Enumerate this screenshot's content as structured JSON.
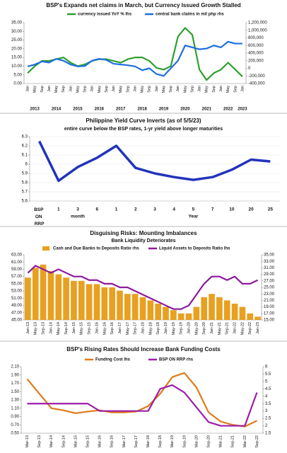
{
  "chart_data": [
    {
      "type": "line",
      "title": "BSP's Expands net claims in March, but Currency Issued Growth Stalled",
      "categories": [
        "Jan",
        "May",
        "Sep",
        "Jan",
        "May",
        "Sep",
        "Jan",
        "May",
        "Sep",
        "Jan",
        "May",
        "Sep",
        "Jan",
        "May",
        "Sep",
        "Jan",
        "May",
        "Sep",
        "Jan",
        "May",
        "Sep",
        "Jan",
        "May",
        "Sep",
        "Jan",
        "May",
        "Sep",
        "Jan",
        "May",
        "Sep",
        "Jan"
      ],
      "year_labels": [
        "2013",
        "2014",
        "2015",
        "2016",
        "2017",
        "2018",
        "2019",
        "2020",
        "2021",
        "2022",
        "2023"
      ],
      "series": [
        {
          "name": "currency issued YoY % lhs",
          "color": "#2e9e2e",
          "values": [
            6,
            10,
            13,
            13,
            14,
            15,
            12,
            10,
            11,
            13,
            14,
            14,
            13,
            12,
            14,
            15,
            15,
            13,
            9,
            8,
            10,
            27,
            32,
            28,
            8,
            2,
            6,
            8,
            12,
            8,
            4
          ]
        },
        {
          "name": "central bank claims in mil php rhs",
          "color": "#1f6fe0",
          "axis": "y2",
          "values": [
            50000,
            100000,
            180000,
            150000,
            250000,
            200000,
            100000,
            50000,
            60000,
            200000,
            250000,
            220000,
            120000,
            100000,
            80000,
            50000,
            -50000,
            0,
            -150000,
            -200000,
            0,
            200000,
            600000,
            550000,
            500000,
            520000,
            600000,
            550000,
            700000,
            650000,
            650000
          ]
        }
      ],
      "ylim": [
        0,
        35
      ],
      "yticks": [
        {
          "value": 0,
          "label": "0.00"
        },
        {
          "value": 5,
          "label": "5.00"
        },
        {
          "value": 10,
          "label": "10.00"
        },
        {
          "value": 15,
          "label": "15.00"
        },
        {
          "value": 20,
          "label": "20.00"
        },
        {
          "value": 25,
          "label": "25.00"
        },
        {
          "value": 30,
          "label": "30.00"
        },
        {
          "value": 35,
          "label": "35.00"
        }
      ],
      "y2lim": [
        -400000,
        1200000
      ],
      "y2ticks": [
        {
          "value": -400000,
          "label": "-400,000"
        },
        {
          "value": -200000,
          "label": "-200,000"
        },
        0,
        {
          "value": 200000,
          "label": "200,000"
        },
        {
          "value": 400000,
          "label": "400,000"
        },
        {
          "value": 600000,
          "label": "600,000"
        },
        {
          "value": 800000,
          "label": "800,000"
        },
        {
          "value": 1000000,
          "label": "1,000,000"
        },
        {
          "value": 1200000,
          "label": "1,200,000"
        }
      ],
      "legend": "top"
    },
    {
      "type": "line",
      "title": "Philippine Yield Curve Inverts (as of 5/5/23)",
      "subtitle": "entire curve below the BSP rates, 1-yr yield above longer maturities",
      "categories": [
        "BSP ON RRP",
        "1",
        "3",
        "6",
        "1",
        "2",
        "3",
        "4",
        "5",
        "7",
        "10",
        "20",
        "25"
      ],
      "group_labels": [
        "month",
        "Year"
      ],
      "series": [
        {
          "color": "#2233bb",
          "values": [
            6.25,
            5.82,
            5.97,
            6.07,
            6.2,
            5.96,
            5.9,
            5.86,
            5.83,
            5.86,
            5.94,
            6.05,
            6.03
          ]
        }
      ],
      "ylim": [
        5.6,
        6.3
      ],
      "yticks": [
        5.6,
        5.7,
        5.8,
        5.9,
        6,
        6.1,
        6.2,
        6.3
      ]
    },
    {
      "type": "bar",
      "title": "Disguising Risks: Mounting Imbalances",
      "subtitle": "Bank Liquidity Deteriorates",
      "categories": [
        "Jan-13",
        "May-13",
        "Sep-13",
        "Jan-14",
        "May-14",
        "Sep-14",
        "Jan-15",
        "May-15",
        "Sep-15",
        "Jan-16",
        "May-16",
        "Sep-16",
        "Jan-17",
        "May-17",
        "Sep-17",
        "Jan-18",
        "May-18",
        "Sep-18",
        "Jan-19",
        "May-19",
        "Sep-19",
        "Jan-20",
        "May-20",
        "Sep-20",
        "Jan-21",
        "May-21",
        "Sep-21",
        "Jan-22",
        "May-22",
        "Sep-22",
        "Jan-23"
      ],
      "series": [
        {
          "name": "Cash and Due Banks to Deposits Ratio rhs",
          "color": "#e8a020",
          "axis": "y2",
          "values": [
            28,
            31,
            32,
            30,
            29,
            28,
            27,
            27,
            26,
            26,
            25,
            25,
            24,
            23,
            23,
            22,
            21,
            20,
            19,
            18,
            17,
            17,
            19,
            22,
            23,
            22,
            21,
            20,
            19,
            17,
            16
          ]
        },
        {
          "name": "Liquid Assets to Deposits Ratio lhs",
          "color": "#8b1a9b",
          "type": "line",
          "values": [
            58,
            60,
            59,
            58,
            59,
            58,
            57,
            57,
            56,
            56,
            55,
            55,
            54,
            54,
            53,
            52,
            51,
            50,
            49,
            48,
            48,
            49,
            52,
            55,
            57,
            57,
            56,
            57,
            55,
            55,
            56
          ]
        }
      ],
      "ylim": [
        45,
        63
      ],
      "yticks": [
        {
          "value": 45,
          "label": "45.00"
        },
        {
          "value": 47,
          "label": "47.00"
        },
        {
          "value": 49,
          "label": "49.00"
        },
        {
          "value": 51,
          "label": "51.00"
        },
        {
          "value": 53,
          "label": "53.00"
        },
        {
          "value": 55,
          "label": "55.00"
        },
        {
          "value": 57,
          "label": "57.00"
        },
        {
          "value": 59,
          "label": "59.00"
        },
        {
          "value": 61,
          "label": "61.00"
        },
        {
          "value": 63,
          "label": "63.00"
        }
      ],
      "y2lim": [
        15,
        35
      ],
      "y2ticks": [
        {
          "value": 15,
          "label": "15.00"
        },
        {
          "value": 17,
          "label": "17.00"
        },
        {
          "value": 19,
          "label": "19.00"
        },
        {
          "value": 21,
          "label": "21.00"
        },
        {
          "value": 23,
          "label": "23.00"
        },
        {
          "value": 25,
          "label": "25.00"
        },
        {
          "value": 27,
          "label": "27.00"
        },
        {
          "value": 29,
          "label": "29.00"
        },
        {
          "value": 31,
          "label": "31.00"
        },
        {
          "value": 33,
          "label": "33.00"
        },
        {
          "value": 35,
          "label": "35.00"
        }
      ],
      "legend": "top"
    },
    {
      "type": "line",
      "title": "BSP's Rising Rates Should Increase Bank Funding Costs",
      "categories": [
        "Mar-13",
        "Sep-13",
        "Mar-14",
        "Sep-14",
        "Mar-15",
        "Sep-15",
        "Mar-16",
        "Sep-16",
        "Mar-17",
        "Sep-17",
        "Mar-18",
        "Sep-18",
        "Mar-19",
        "Sep-19",
        "Mar-20",
        "Sep-20",
        "Mar-21",
        "Sep-21",
        "Mar-22",
        "Sep-22"
      ],
      "series": [
        {
          "name": "Funding Cost lhs",
          "color": "#e07b1a",
          "values": [
            1.8,
            1.45,
            1.1,
            1.05,
            0.98,
            1.02,
            1.05,
            1,
            1,
            1.02,
            1.15,
            1.45,
            1.85,
            1.95,
            1.6,
            1,
            0.78,
            0.7,
            0.66,
            0.8
          ]
        },
        {
          "name": "BSP ON RRP rhs",
          "color": "#9b1fa8",
          "axis": "y2",
          "values": [
            3.5,
            3.5,
            3.5,
            3.5,
            3.5,
            3.5,
            3,
            3,
            3,
            3,
            3,
            4.5,
            4.75,
            4.25,
            3.25,
            2.25,
            2,
            2,
            2,
            4.25
          ]
        }
      ],
      "ylim": [
        0.5,
        2.1
      ],
      "yticks": [
        {
          "value": 0.5,
          "label": "0.50"
        },
        {
          "value": 0.7,
          "label": "0.70"
        },
        {
          "value": 0.9,
          "label": "0.90"
        },
        {
          "value": 1.1,
          "label": "1.10"
        },
        {
          "value": 1.3,
          "label": "1.30"
        },
        {
          "value": 1.5,
          "label": "1.50"
        },
        {
          "value": 1.7,
          "label": "1.70"
        },
        {
          "value": 1.9,
          "label": "1.90"
        },
        {
          "value": 2.1,
          "label": "2.10"
        }
      ],
      "y2lim": [
        1.5,
        6
      ],
      "y2ticks": [
        1.5,
        2,
        2.5,
        3,
        3.5,
        4,
        4.5,
        5,
        5.5,
        6
      ],
      "legend": "top"
    }
  ]
}
